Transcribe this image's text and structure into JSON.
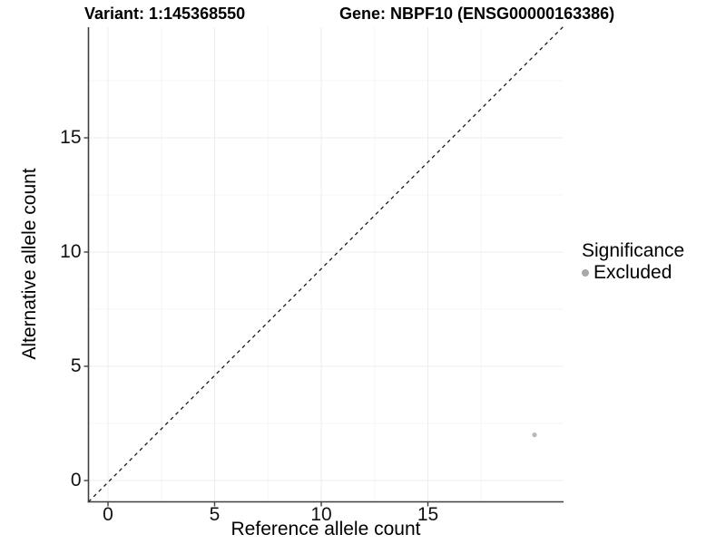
{
  "title": {
    "variant": "Variant: 1:145368550",
    "gene": "Gene: NBPF10 (ENSG00000163386)"
  },
  "chart_data": {
    "type": "scatter",
    "title": "Variant: 1:145368550   Gene: NBPF10 (ENSG00000163386)",
    "xlabel": "Reference allele count",
    "ylabel": "Alternative allele count",
    "xlim": [
      -0.95,
      21.4
    ],
    "ylim": [
      -0.9,
      19.85
    ],
    "x_ticks": [
      0,
      5,
      10,
      15
    ],
    "y_ticks": [
      0,
      5,
      10,
      15
    ],
    "x_minor_ticks": [
      2.5,
      7.5,
      12.5,
      17.5
    ],
    "y_minor_ticks": [
      2.5,
      7.5,
      12.5,
      17.5
    ],
    "grid": true,
    "identity_line": {
      "slope": 1,
      "intercept": 0,
      "linetype": "dashed",
      "color": "#1a1a1a"
    },
    "series": [
      {
        "name": "Excluded",
        "points": [
          {
            "x": 20,
            "y": 2
          }
        ],
        "color": "#b9b9b9"
      }
    ],
    "legend": {
      "position": "right",
      "title": "Significance",
      "entries": [
        {
          "label": "Excluded",
          "color": "#a8a8a8"
        }
      ]
    }
  },
  "colors": {
    "background": "#ffffff",
    "axis_line": "#3f3f3f",
    "tick_mark": "#3f3f3f",
    "grid_major": "#ececec",
    "grid_minor": "#f5f5f5",
    "tick_text": "#111111",
    "title_text": "#000000",
    "point_excluded": "#b9b9b9",
    "legend_dot": "#a8a8a8"
  }
}
